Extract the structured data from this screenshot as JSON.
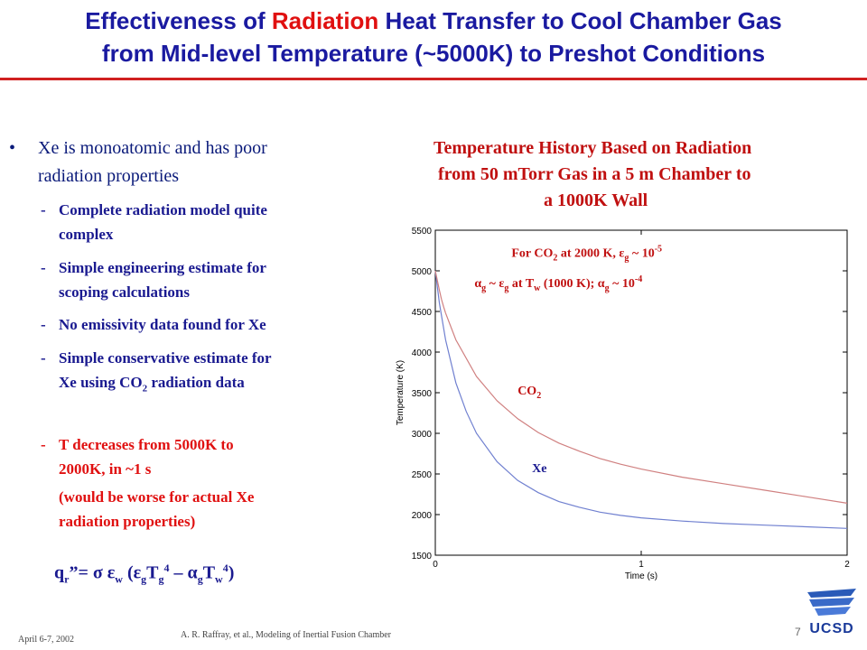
{
  "title": {
    "line1_pre": "Effectiveness of ",
    "line1_highlight": "Radiation",
    "line1_post": " Heat Transfer to Cool Chamber Gas",
    "line2": "from Mid-level Temperature (~5000K) to Preshot Conditions"
  },
  "left": {
    "bullet_symbol": "•",
    "bullet_line1": "Xe is monoatomic and has poor",
    "bullet_line2": "radiation properties",
    "dash": "-",
    "items": [
      {
        "l1": "Complete radiation model quite",
        "l2": "complex"
      },
      {
        "l1": "Simple engineering estimate for",
        "l2": "scoping calculations"
      },
      {
        "l1": "No emissivity data found for Xe",
        "l2": ""
      },
      {
        "l1": "Simple conservative estimate for",
        "l2_pre": "Xe using CO",
        "l2_sub": "2",
        "l2_post": " radiation data"
      }
    ],
    "red_item": {
      "l1": " T decreases from 5000K to",
      "l2": "2000K, in ~1 s",
      "l3": "(would be worse for actual Xe",
      "l4": "radiation properties)"
    }
  },
  "formula": {
    "q": "q",
    "r": "r",
    "eq": "”=  σ  ε",
    "w": "w",
    "open": " (ε",
    "g1": "g",
    "T1": "T",
    "g2": "g",
    "p1": "4",
    "minus": " – α",
    "g3": "g",
    "T2": "T",
    "w2": "w",
    "p2": "4",
    "close": ")"
  },
  "chart_title": {
    "line1": "Temperature History Based on Radiation",
    "line2": "from 50 mTorr Gas in a 5 m Chamber to",
    "line3": "a 1000K Wall"
  },
  "chart_data": {
    "type": "line",
    "xlabel": "Time (s)",
    "ylabel": "Temperature (K)",
    "xlim": [
      0,
      2
    ],
    "ylim": [
      1500,
      5500
    ],
    "xticks": [
      "0",
      "1",
      "2"
    ],
    "yticks": [
      "1500",
      "2000",
      "2500",
      "3000",
      "3500",
      "4000",
      "4500",
      "5000",
      "5500"
    ],
    "annotation_line1": "For CO2 at 2000 K, εg ~ 10-5",
    "annotation_line2": "αg ~ εg at Tw (1000 K); αg ~ 10-4",
    "series": [
      {
        "name": "CO2",
        "color": "#d08080",
        "x": [
          0.05,
          0.1,
          0.2,
          0.3,
          0.4,
          0.5,
          0.6,
          0.7,
          0.8,
          0.9,
          1.0,
          1.2,
          1.4,
          1.6,
          1.8,
          2.0
        ],
        "y": [
          4480,
          4150,
          3700,
          3400,
          3180,
          3010,
          2880,
          2780,
          2690,
          2620,
          2560,
          2460,
          2380,
          2300,
          2220,
          2140
        ]
      },
      {
        "name": "Xe",
        "color": "#7080d0",
        "x": [
          0.0,
          0.02,
          0.05,
          0.1,
          0.15,
          0.2,
          0.3,
          0.4,
          0.5,
          0.6,
          0.7,
          0.8,
          0.9,
          1.0,
          1.2,
          1.4,
          1.6,
          1.8,
          2.0
        ],
        "y": [
          5000,
          4600,
          4150,
          3620,
          3270,
          3000,
          2650,
          2420,
          2270,
          2160,
          2090,
          2030,
          1990,
          1960,
          1920,
          1890,
          1870,
          1850,
          1830
        ]
      },
      {
        "name": "",
        "color": "#d08080",
        "x": [
          0.0,
          0.01,
          0.02,
          0.03,
          0.04,
          0.05
        ],
        "y": [
          5000,
          4880,
          4760,
          4650,
          4560,
          4480
        ]
      }
    ]
  },
  "footer": {
    "date": "April 6-7, 2002",
    "author": "A. R. Raffray, et al., Modeling of Inertial Fusion Chamber",
    "page": "7",
    "logo": "UCSD"
  }
}
